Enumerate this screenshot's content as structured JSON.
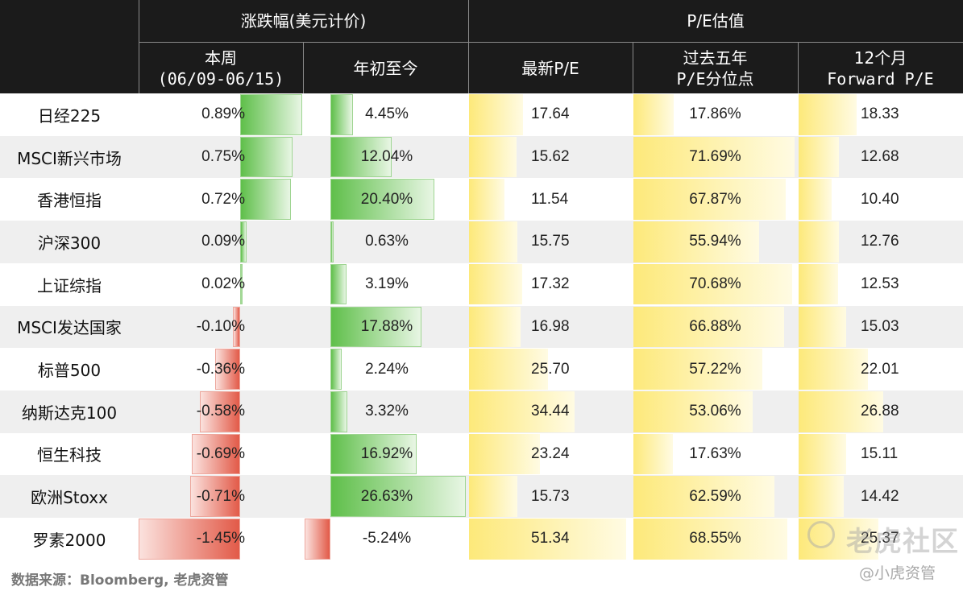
{
  "chart_data": {
    "type": "table",
    "group_headers": [
      "涨跌幅(美元计价)",
      "P/E估值"
    ],
    "columns": [
      {
        "key": "week",
        "lines": [
          "本周",
          "(06/09-06/15)"
        ]
      },
      {
        "key": "ytd",
        "lines": [
          "年初至今"
        ]
      },
      {
        "key": "pe",
        "lines": [
          "最新P/E"
        ]
      },
      {
        "key": "pct",
        "lines": [
          "过去五年",
          "P/E分位点"
        ]
      },
      {
        "key": "fpe",
        "lines": [
          "12个月",
          "Forward P/E"
        ]
      }
    ],
    "rows": [
      {
        "name": "日经225",
        "week": 0.89,
        "ytd": 4.45,
        "pe": 17.64,
        "pct": 17.86,
        "fpe": 18.33
      },
      {
        "name": "MSCI新兴市场",
        "week": 0.75,
        "ytd": 12.04,
        "pe": 15.62,
        "pct": 71.69,
        "fpe": 12.68
      },
      {
        "name": "香港恒指",
        "week": 0.72,
        "ytd": 20.4,
        "pe": 11.54,
        "pct": 67.87,
        "fpe": 10.4
      },
      {
        "name": "沪深300",
        "week": 0.09,
        "ytd": 0.63,
        "pe": 15.75,
        "pct": 55.94,
        "fpe": 12.76
      },
      {
        "name": "上证综指",
        "week": 0.02,
        "ytd": 3.19,
        "pe": 17.32,
        "pct": 70.68,
        "fpe": 12.53
      },
      {
        "name": "MSCI发达国家",
        "week": -0.1,
        "ytd": 17.88,
        "pe": 16.98,
        "pct": 66.88,
        "fpe": 15.03
      },
      {
        "name": "标普500",
        "week": -0.36,
        "ytd": 2.24,
        "pe": 25.7,
        "pct": 57.22,
        "fpe": 22.01
      },
      {
        "name": "纳斯达克100",
        "week": -0.58,
        "ytd": 3.32,
        "pe": 34.44,
        "pct": 53.06,
        "fpe": 26.88
      },
      {
        "name": "恒生科技",
        "week": -0.69,
        "ytd": 16.92,
        "pe": 23.24,
        "pct": 17.63,
        "fpe": 15.11
      },
      {
        "name": "欧洲Stoxx",
        "week": -0.71,
        "ytd": 26.63,
        "pe": 15.73,
        "pct": 62.59,
        "fpe": 14.42
      },
      {
        "name": "罗素2000",
        "week": -1.45,
        "ytd": -5.24,
        "pe": 51.34,
        "pct": 68.55,
        "fpe": 25.37
      }
    ],
    "colors": {
      "positive": "#5fbf4a",
      "negative": "#e25a48",
      "pe": "#fde97a",
      "header": "#1b1b1b"
    }
  },
  "source": "数据来源：Bloomberg, 老虎资管",
  "watermark": {
    "main": "老虎社区",
    "sub": "@小虎资管"
  }
}
